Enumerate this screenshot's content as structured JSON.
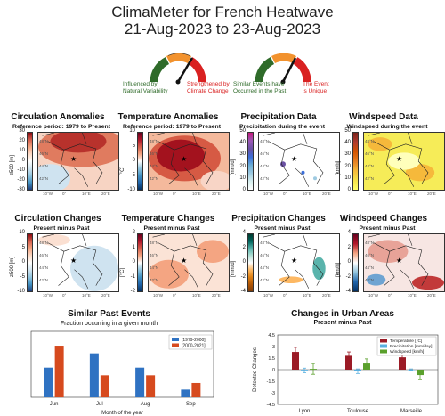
{
  "header": {
    "title": "ClimaMeter for French Heatwave",
    "dates": "21-Aug-2023 to 23-Aug-2023"
  },
  "gauges": [
    {
      "left_label": "Influenced by\nNatural Variability",
      "right_label": "Strengthened by\nClimate Change",
      "needle_position": "strengthened"
    },
    {
      "left_label": "Similar Events have\nOccurred in the Past",
      "right_label": "The Event\nis Unique",
      "needle_position": "unique"
    }
  ],
  "colors": {
    "green": "#2f6b2a",
    "orange": "#f2922e",
    "red": "#d92121",
    "dark_red": "#9b1b26",
    "blue": "#2f72c2",
    "bar_red": "#d64a1e"
  },
  "row1": [
    {
      "title": "Circulation Anomalies",
      "subtitle": "Reference period: 1979 to Present",
      "cbar_label": "z500 [m]",
      "ticks": [
        "30",
        "20",
        "10",
        "0",
        "-10",
        "-20",
        "-30"
      ]
    },
    {
      "title": "Temperature Anomalies",
      "subtitle": "Reference period: 1979 to Present",
      "cbar_label": "[°C]",
      "ticks": [
        "10",
        "5",
        "0",
        "-5",
        "-10"
      ]
    },
    {
      "title": "Precipitation Data",
      "subtitle": "Precipitation during the event",
      "cbar_label": "[mm/d]",
      "ticks": [
        "50",
        "40",
        "30",
        "20",
        "10",
        "0"
      ]
    },
    {
      "title": "Windspeed Data",
      "subtitle": "Windspeed during the event",
      "cbar_label": "[km/h]",
      "ticks": [
        "50",
        "40",
        "30",
        "20",
        "10",
        "0"
      ]
    }
  ],
  "row2": [
    {
      "title": "Circulation Changes",
      "subtitle": "Present minus Past",
      "cbar_label": "z500 [m]",
      "ticks": [
        "10",
        "5",
        "0",
        "-5",
        "-10"
      ]
    },
    {
      "title": "Temperature Changes",
      "subtitle": "Present minus Past",
      "cbar_label": "[°C]",
      "ticks": [
        "2",
        "1",
        "0",
        "-1",
        "-2"
      ]
    },
    {
      "title": "Precipitation Changes",
      "subtitle": "Present minus Past",
      "cbar_label": "[mm/d]",
      "ticks": [
        "4",
        "2",
        "0",
        "-2",
        "-4"
      ]
    },
    {
      "title": "Windspeed Changes",
      "subtitle": "Present minus Past",
      "cbar_label": "[km/h]",
      "ticks": [
        "4",
        "2",
        "0",
        "-2",
        "-4"
      ]
    }
  ],
  "map_labels": {
    "lats": [
      "48°N",
      "46°N",
      "44°N",
      "42°N"
    ],
    "lons": [
      "10°W",
      "0°",
      "10°E",
      "20°E"
    ]
  },
  "chart_data": [
    {
      "type": "bar",
      "title": "Similar Past Events",
      "subtitle": "Fraction occurring in a given month",
      "xlabel": "Month of the year",
      "categories": [
        "Jun",
        "Jul",
        "Aug",
        "Sep"
      ],
      "ylim": [
        0,
        0.6
      ],
      "series": [
        {
          "name": "[1979-2000]",
          "color": "#2f72c2",
          "values": [
            0.27,
            0.4,
            0.27,
            0.07
          ]
        },
        {
          "name": "[2000-2021]",
          "color": "#d64a1e",
          "values": [
            0.47,
            0.2,
            0.2,
            0.13
          ]
        }
      ]
    },
    {
      "type": "bar",
      "title": "Changes in Urban Areas",
      "subtitle": "Present minus Past",
      "ylabel": "Detected Changes",
      "categories": [
        "Lyon",
        "Toulouse",
        "Marseille"
      ],
      "yticks": [
        "4.5",
        "3",
        "1.5",
        "0",
        "-1.5",
        "-3",
        "-4.5"
      ],
      "ylim": [
        -4.5,
        4.5
      ],
      "series": [
        {
          "name": "Temperature [°C]",
          "color": "#9b1b26",
          "values": [
            2.3,
            1.8,
            1.6
          ],
          "err": [
            0.6,
            0.5,
            0.4
          ]
        },
        {
          "name": "Precipitation [mm/day]",
          "color": "#5ab0e0",
          "values": [
            -0.1,
            -0.2,
            0.0
          ],
          "err": [
            0.3,
            0.3,
            0.1
          ]
        },
        {
          "name": "Windspeed [km/h]",
          "color": "#5aa02c",
          "values": [
            0.1,
            0.8,
            -0.7
          ],
          "err": [
            0.7,
            0.6,
            0.6
          ]
        }
      ]
    }
  ]
}
